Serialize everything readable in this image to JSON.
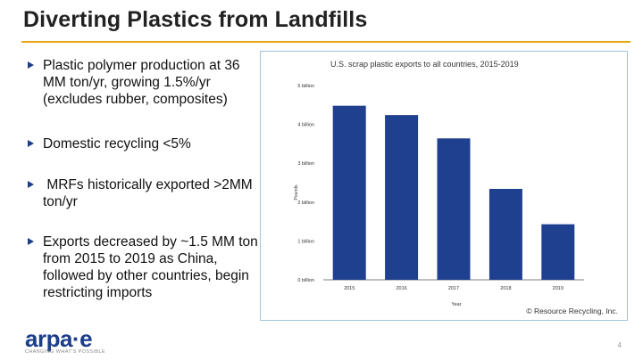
{
  "slide": {
    "title": "Diverting Plastics from Landfills",
    "page_number": "4"
  },
  "bullets": [
    "Plastic polymer production at 36 MM ton/yr, growing 1.5%/yr (excludes rubber, composites)",
    "Domestic recycling <5%",
    " MRFs historically exported >2MM ton/yr",
    "Exports decreased by ~1.5 MM ton from 2015 to 2019 as China, followed by other countries, begin restricting imports"
  ],
  "logo": {
    "wordmark": "arpa·e",
    "tagline": "CHANGING WHAT'S POSSIBLE"
  },
  "chart_data": {
    "type": "bar",
    "title": "U.S. scrap plastic exports to all countries, 2015-2019",
    "xlabel": "Year",
    "ylabel": "Pounds",
    "categories": [
      "2015",
      "2016",
      "2017",
      "2018",
      "2019"
    ],
    "values": [
      4.48,
      4.24,
      3.64,
      2.34,
      1.43
    ],
    "ylim": [
      0,
      5
    ],
    "yticks": [
      0,
      1,
      2,
      3,
      4,
      5
    ],
    "ytick_labels": [
      "0 billion",
      "1 billion",
      "2 billion",
      "3 billion",
      "4 billion",
      "5 billion"
    ],
    "units": "billion pounds",
    "grid": false,
    "bar_color": "#1f3f8f",
    "source": "© Resource Recycling, Inc."
  },
  "colors": {
    "accent": "#e8a817",
    "brand": "#1b3d8a",
    "frame": "#9fc6dc"
  }
}
